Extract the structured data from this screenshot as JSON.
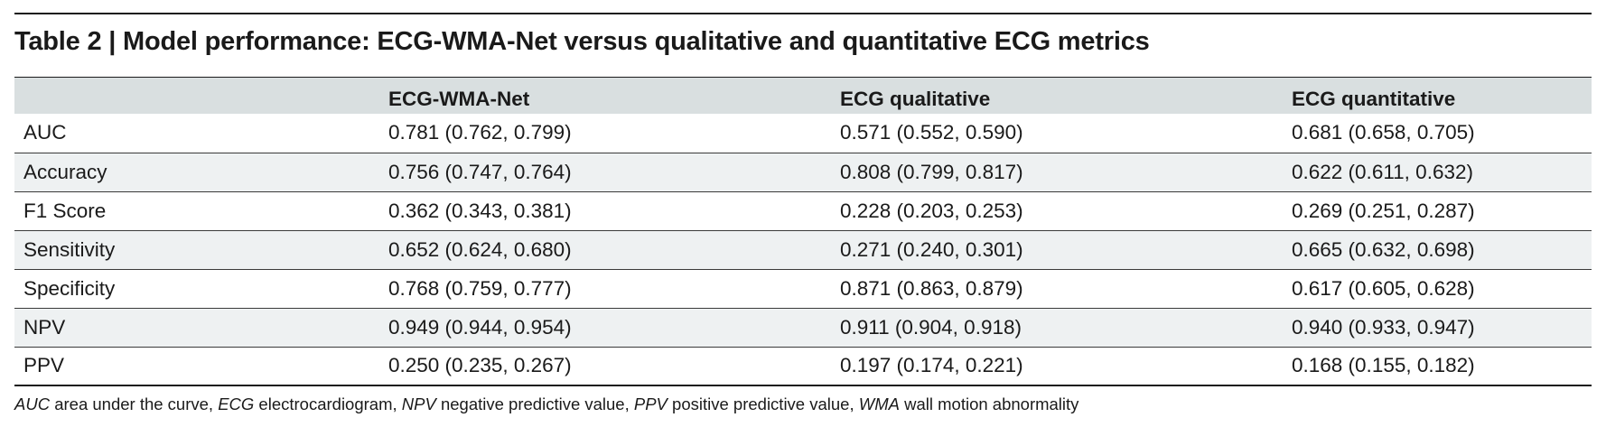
{
  "title": "Table 2 | Model performance: ECG-WMA-Net versus qualitative and quantitative ECG metrics",
  "table": {
    "headers": [
      "",
      "ECG-WMA-Net",
      "ECG qualitative",
      "ECG quantitative"
    ],
    "rows": [
      [
        "AUC",
        "0.781 (0.762, 0.799)",
        "0.571 (0.552, 0.590)",
        "0.681 (0.658, 0.705)"
      ],
      [
        "Accuracy",
        "0.756 (0.747, 0.764)",
        "0.808 (0.799, 0.817)",
        "0.622 (0.611, 0.632)"
      ],
      [
        "F1 Score",
        "0.362 (0.343, 0.381)",
        "0.228 (0.203, 0.253)",
        "0.269 (0.251, 0.287)"
      ],
      [
        "Sensitivity",
        "0.652 (0.624, 0.680)",
        "0.271 (0.240, 0.301)",
        "0.665 (0.632, 0.698)"
      ],
      [
        "Specificity",
        "0.768 (0.759, 0.777)",
        "0.871 (0.863, 0.879)",
        "0.617 (0.605, 0.628)"
      ],
      [
        "NPV",
        "0.949 (0.944, 0.954)",
        "0.911 (0.904, 0.918)",
        "0.940 (0.933, 0.947)"
      ],
      [
        "PPV",
        "0.250 (0.235, 0.267)",
        "0.197 (0.174, 0.221)",
        "0.168 (0.155, 0.182)"
      ]
    ]
  },
  "footnote": [
    {
      "abbr": "AUC",
      "def": " area under the curve, "
    },
    {
      "abbr": "ECG",
      "def": " electrocardiogram, "
    },
    {
      "abbr": "NPV",
      "def": " negative predictive value, "
    },
    {
      "abbr": "PPV",
      "def": " positive predictive value, "
    },
    {
      "abbr": "WMA",
      "def": " wall motion abnormality"
    }
  ]
}
